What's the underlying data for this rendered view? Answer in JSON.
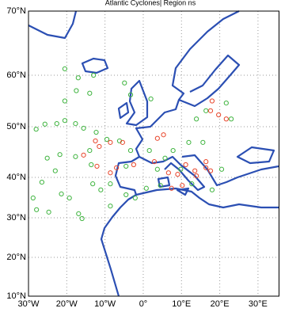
{
  "chart_data": {
    "type": "scatter",
    "title": "Atlantic Cyclones| Region ns",
    "xlim": [
      -30,
      35.5
    ],
    "ylim": [
      10,
      70
    ],
    "xticks": [
      {
        "value": -30,
        "label": "30°W"
      },
      {
        "value": -20,
        "label": "20°W"
      },
      {
        "value": -10,
        "label": "10°W"
      },
      {
        "value": 0,
        "label": "0°"
      },
      {
        "value": 10,
        "label": "10°E"
      },
      {
        "value": 20,
        "label": "20°E"
      },
      {
        "value": 30,
        "label": "30°E"
      }
    ],
    "yticks": [
      {
        "value": 10,
        "label": "10°N"
      },
      {
        "value": 20,
        "label": "20°N"
      },
      {
        "value": 30,
        "label": "30°N"
      },
      {
        "value": 40,
        "label": "40°N"
      },
      {
        "value": 50,
        "label": "50°N"
      },
      {
        "value": 60,
        "label": "60°N"
      },
      {
        "value": 70,
        "label": "70°N"
      }
    ],
    "grid": true,
    "series": [
      {
        "color": "#3fb43f",
        "x": [
          -20.5,
          -17,
          -13,
          -17.5,
          -14,
          -20.5,
          -25.7,
          -28,
          -22.6,
          -20.5,
          -17.7,
          -15.6,
          -12.3,
          -9.5,
          -6.2,
          -14,
          -17.7,
          -25.1,
          -23,
          -26.5,
          -28.8,
          -27.9,
          -24.7,
          -21.4,
          -19.3,
          -16.9,
          -16,
          -13.2,
          -11.1,
          -8.6,
          -4.5,
          -2.1,
          0.8,
          4.5,
          7.8,
          11.9,
          13.9,
          15.6,
          16.4,
          -4.9,
          -3.3,
          2,
          -3.3,
          1.6,
          3.7,
          5.7,
          9.8,
          12.7,
          18,
          20.5,
          21.7,
          23,
          -21.8,
          -8.6,
          -13.6,
          -4.5
        ],
        "values": [
          61,
          59.5,
          60,
          57,
          56.5,
          55,
          50.5,
          49.5,
          50.6,
          51.2,
          50.6,
          49.7,
          48.9,
          47.5,
          47.2,
          45.3,
          44.1,
          43.8,
          41.3,
          38.8,
          34.9,
          32,
          31.4,
          35.9,
          34.9,
          31,
          29.8,
          38.4,
          36.9,
          38.4,
          35.7,
          34.9,
          37.3,
          38,
          45.3,
          46.9,
          51.5,
          46.9,
          53.1,
          58.5,
          56.2,
          55.4,
          45.3,
          45.3,
          41.6,
          43.8,
          41.6,
          38.4,
          36.9,
          41.6,
          54.6,
          51.5,
          44.5,
          32.9,
          42.5,
          42.2
        ]
      },
      {
        "color": "#e8452a",
        "x": [
          -12.5,
          -11.5,
          -15.6,
          -12.1,
          -8.6,
          -7,
          -2.5,
          2.9,
          6.6,
          9,
          11.1,
          13.5,
          16.4,
          17.6,
          10.2,
          7.4,
          18,
          17.6,
          21.7,
          19.7,
          -8.6,
          -5.4,
          5.3,
          3.7,
          13.9,
          16.4
        ],
        "values": [
          47.2,
          46.1,
          44.4,
          42.2,
          40.9,
          41.9,
          42.5,
          43.1,
          40.9,
          40.6,
          42.5,
          41.3,
          41.9,
          41.3,
          38,
          37.3,
          55,
          53.1,
          51.5,
          52.3,
          46.9,
          46.9,
          48.4,
          47.7,
          40.3,
          43.1
        ]
      }
    ]
  }
}
